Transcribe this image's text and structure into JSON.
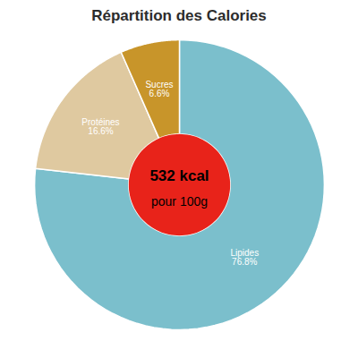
{
  "chart_data": {
    "type": "pie",
    "title": "Répartition des Calories",
    "categories": [
      "Lipides",
      "Protéines",
      "Sucres"
    ],
    "values": [
      76.8,
      16.6,
      6.6
    ],
    "value_labels": [
      "76.8%",
      "16.6%",
      "6.6%"
    ],
    "colors": [
      "#7bbfcc",
      "#dfc9a0",
      "#c8952a"
    ],
    "data_labels": true,
    "annotations": [
      "532 kcal",
      "pour 100g"
    ]
  }
}
